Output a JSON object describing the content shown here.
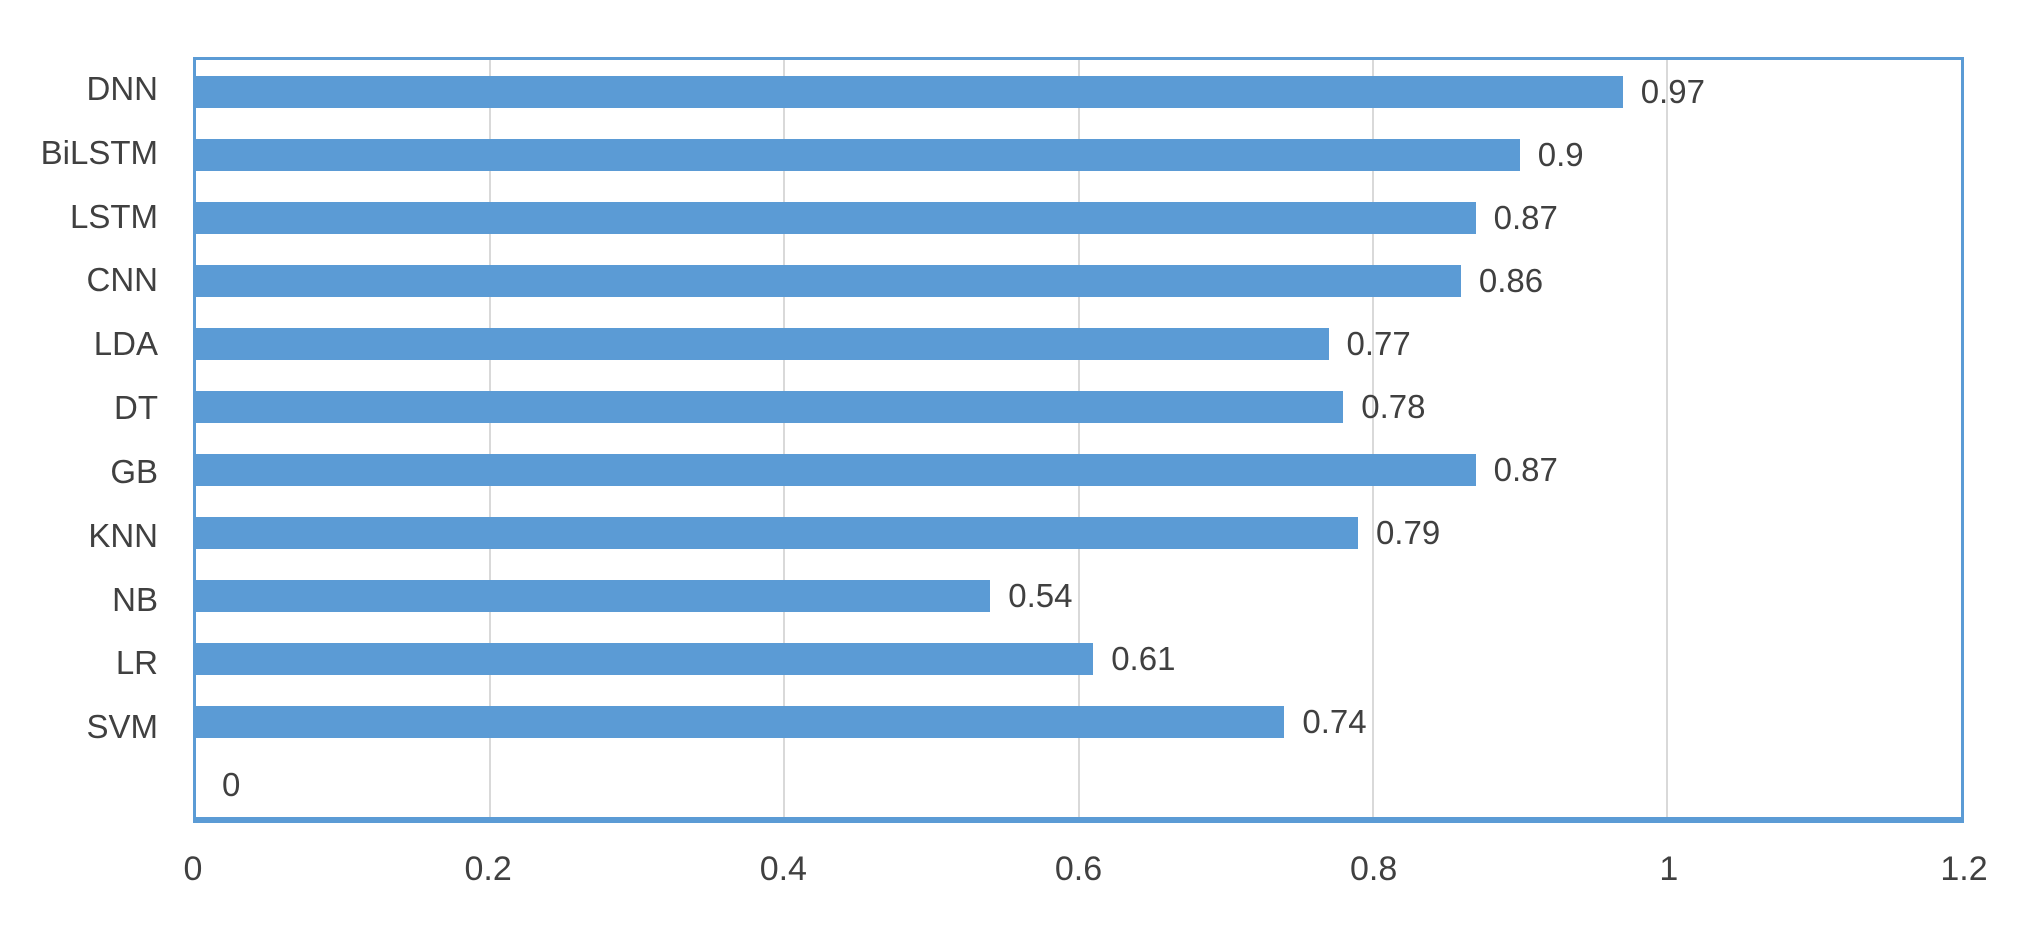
{
  "chart_data": {
    "type": "bar",
    "orientation": "horizontal",
    "title": "",
    "xlabel": "",
    "ylabel": "",
    "categories": [
      "DNN",
      "BiLSTM",
      "LSTM",
      "CNN",
      "LDA",
      "DT",
      "GB",
      "KNN",
      "NB",
      "LR",
      "SVM",
      ""
    ],
    "values": [
      0.97,
      0.9,
      0.87,
      0.86,
      0.77,
      0.78,
      0.87,
      0.79,
      0.54,
      0.61,
      0.74,
      0
    ],
    "data_labels": [
      "0.97",
      "0.9",
      "0.87",
      "0.86",
      "0.77",
      "0.78",
      "0.87",
      "0.79",
      "0.54",
      "0.61",
      "0.74",
      "0"
    ],
    "x_ticks": [
      {
        "label": "0",
        "value": 0
      },
      {
        "label": "0.2",
        "value": 0.2
      },
      {
        "label": "0.4",
        "value": 0.4
      },
      {
        "label": "0.6",
        "value": 0.6
      },
      {
        "label": "0.8",
        "value": 0.8
      },
      {
        "label": "1",
        "value": 1
      },
      {
        "label": "1.2",
        "value": 1.2
      }
    ],
    "gridline_values": [
      0.2,
      0.4,
      0.6,
      0.8,
      1.0
    ],
    "xlim": [
      0,
      1.2
    ],
    "grid": "vertical",
    "legend": "none",
    "colors": {
      "bar": "#5B9BD5",
      "plot_border": "#5B9BD5",
      "gridline": "#D9D9D9",
      "text": "#404040",
      "background": "#FFFFFF"
    }
  }
}
